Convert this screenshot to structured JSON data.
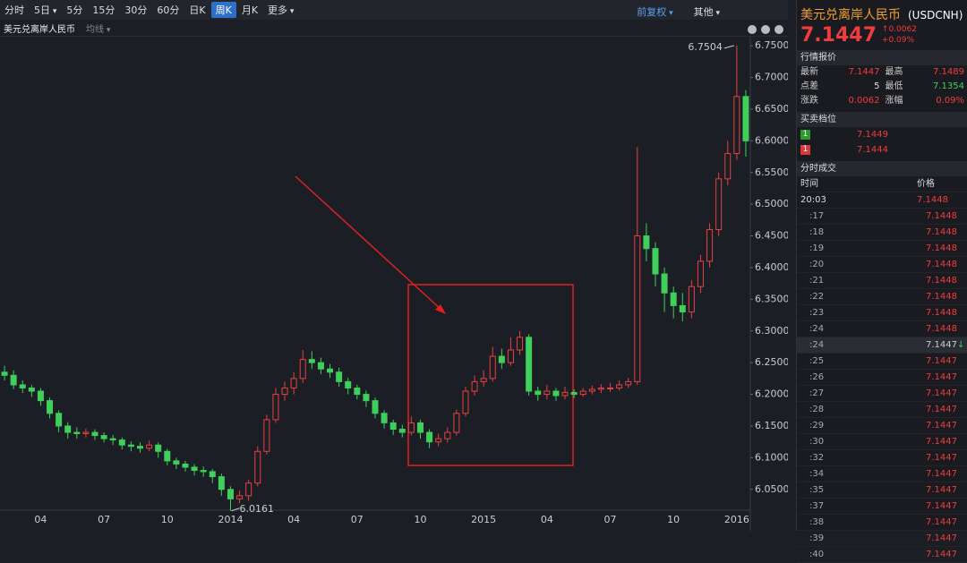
{
  "toolbar": {
    "periods": [
      "分时",
      "5日",
      "5分",
      "15分",
      "30分",
      "60分",
      "日K",
      "周K",
      "月K",
      "更多"
    ],
    "right": [
      "前复权",
      "其他"
    ]
  },
  "chart_header": {
    "name": "美元兑离岸人民币",
    "indicator": "均线"
  },
  "chart_data": {
    "type": "candlestick",
    "up_color": "#e8403f",
    "down_color": "#3fcf5b",
    "categories": [
      null,
      null,
      null,
      null,
      "04",
      null,
      null,
      null,
      null,
      null,
      null,
      "07",
      null,
      null,
      null,
      null,
      null,
      null,
      "10",
      null,
      null,
      null,
      null,
      null,
      null,
      "2014",
      null,
      null,
      null,
      null,
      null,
      null,
      "04",
      null,
      null,
      null,
      null,
      null,
      null,
      "07",
      null,
      null,
      null,
      null,
      null,
      null,
      "10",
      null,
      null,
      null,
      null,
      null,
      null,
      "2015",
      null,
      null,
      null,
      null,
      null,
      null,
      "04",
      null,
      null,
      null,
      null,
      null,
      null,
      "07",
      null,
      null,
      null,
      null,
      null,
      null,
      "10",
      null,
      null,
      null,
      null,
      null,
      null,
      "2016",
      null
    ],
    "open": [
      6.235,
      6.23,
      6.215,
      6.21,
      6.205,
      6.19,
      6.17,
      6.15,
      6.14,
      6.138,
      6.14,
      6.135,
      6.13,
      6.128,
      6.12,
      6.118,
      6.115,
      6.12,
      6.11,
      6.095,
      6.09,
      6.085,
      6.08,
      6.078,
      6.07,
      6.05,
      6.035,
      6.04,
      6.06,
      6.11,
      6.16,
      6.2,
      6.21,
      6.225,
      6.255,
      6.25,
      6.24,
      6.235,
      6.22,
      6.21,
      6.2,
      6.19,
      6.17,
      6.155,
      6.145,
      6.14,
      6.155,
      6.14,
      6.125,
      6.13,
      6.14,
      6.17,
      6.205,
      6.22,
      6.225,
      6.26,
      6.25,
      6.27,
      6.29,
      6.205,
      6.2,
      6.205,
      6.198,
      6.203,
      6.2,
      6.205,
      6.208,
      6.21,
      6.21,
      6.215,
      6.22,
      6.45,
      6.43,
      6.39,
      6.36,
      6.34,
      6.33,
      6.37,
      6.41,
      6.46,
      6.54,
      6.58,
      6.67
    ],
    "high": [
      6.245,
      6.238,
      6.222,
      6.215,
      6.21,
      6.195,
      6.175,
      6.156,
      6.148,
      6.146,
      6.145,
      6.14,
      6.136,
      6.132,
      6.126,
      6.124,
      6.127,
      6.124,
      6.114,
      6.1,
      6.095,
      6.09,
      6.086,
      6.082,
      6.075,
      6.055,
      6.048,
      6.065,
      6.118,
      6.168,
      6.21,
      6.22,
      6.235,
      6.27,
      6.268,
      6.258,
      6.248,
      6.242,
      6.226,
      6.215,
      6.206,
      6.195,
      6.175,
      6.16,
      6.152,
      6.165,
      6.16,
      6.145,
      6.138,
      6.148,
      6.176,
      6.212,
      6.23,
      6.238,
      6.275,
      6.272,
      6.29,
      6.3,
      6.295,
      6.212,
      6.215,
      6.21,
      6.212,
      6.208,
      6.21,
      6.214,
      6.216,
      6.218,
      6.222,
      6.226,
      6.59,
      6.47,
      6.44,
      6.4,
      6.37,
      6.36,
      6.38,
      6.42,
      6.47,
      6.55,
      6.6,
      6.7504,
      6.68
    ],
    "low": [
      6.222,
      6.208,
      6.202,
      6.196,
      6.182,
      6.162,
      6.14,
      6.13,
      6.13,
      6.132,
      6.128,
      6.124,
      6.12,
      6.113,
      6.11,
      6.108,
      6.11,
      6.1,
      6.088,
      6.082,
      6.078,
      6.072,
      6.07,
      6.06,
      6.04,
      6.0161,
      6.028,
      6.032,
      6.055,
      6.105,
      6.155,
      6.19,
      6.2,
      6.218,
      6.24,
      6.232,
      6.226,
      6.212,
      6.2,
      6.192,
      6.18,
      6.162,
      6.146,
      6.136,
      6.132,
      6.135,
      6.13,
      6.115,
      6.118,
      6.124,
      6.135,
      6.165,
      6.198,
      6.212,
      6.22,
      6.24,
      6.245,
      6.262,
      6.198,
      6.19,
      6.192,
      6.19,
      6.192,
      6.194,
      6.196,
      6.2,
      6.202,
      6.204,
      6.206,
      6.21,
      6.215,
      6.41,
      6.37,
      6.33,
      6.32,
      6.315,
      6.32,
      6.36,
      6.4,
      6.45,
      6.53,
      6.57,
      6.575
    ],
    "close": [
      6.23,
      6.215,
      6.21,
      6.205,
      6.19,
      6.17,
      6.15,
      6.14,
      6.138,
      6.14,
      6.135,
      6.13,
      6.128,
      6.12,
      6.118,
      6.115,
      6.12,
      6.11,
      6.095,
      6.09,
      6.085,
      6.08,
      6.078,
      6.07,
      6.05,
      6.035,
      6.04,
      6.06,
      6.11,
      6.16,
      6.2,
      6.21,
      6.225,
      6.255,
      6.25,
      6.24,
      6.235,
      6.22,
      6.21,
      6.2,
      6.19,
      6.17,
      6.155,
      6.145,
      6.14,
      6.155,
      6.14,
      6.125,
      6.13,
      6.14,
      6.17,
      6.205,
      6.22,
      6.225,
      6.26,
      6.25,
      6.27,
      6.29,
      6.205,
      6.2,
      6.205,
      6.198,
      6.203,
      6.2,
      6.205,
      6.208,
      6.21,
      6.21,
      6.215,
      6.22,
      6.45,
      6.43,
      6.39,
      6.36,
      6.34,
      6.33,
      6.37,
      6.41,
      6.46,
      6.54,
      6.58,
      6.67,
      6.6
    ],
    "ylim": [
      6.02,
      6.77
    ],
    "yticks": [
      {
        "value": 6.05,
        "label": "6.0500"
      },
      {
        "value": 6.1,
        "label": "6.1000"
      },
      {
        "value": 6.15,
        "label": "6.1500"
      },
      {
        "value": 6.2,
        "label": "6.2000"
      },
      {
        "value": 6.25,
        "label": "6.2500"
      },
      {
        "value": 6.3,
        "label": "6.3000"
      },
      {
        "value": 6.35,
        "label": "6.3500"
      },
      {
        "value": 6.4,
        "label": "6.4000"
      },
      {
        "value": 6.45,
        "label": "6.4500"
      },
      {
        "value": 6.5,
        "label": "6.5000"
      },
      {
        "value": 6.55,
        "label": "6.5500"
      },
      {
        "value": 6.6,
        "label": "6.6000"
      },
      {
        "value": 6.65,
        "label": "6.6500"
      },
      {
        "value": 6.7,
        "label": "6.7000"
      },
      {
        "value": 6.75,
        "label": "6.7500"
      }
    ]
  },
  "panel": {
    "title": "美元兑离岸人民币",
    "code": "(USDCNH)",
    "price": "7.1447",
    "change": "0.0062",
    "change_pct": "+0.09%",
    "quote_title": "行情报价",
    "quote": [
      [
        "最新",
        "7.1447",
        "最高",
        "7.1489"
      ],
      [
        "点差",
        "5",
        "最低",
        "7.1354"
      ],
      [
        "涨跌",
        "0.0062",
        "涨幅",
        "0.09%"
      ]
    ],
    "depth_title": "买卖档位",
    "depth": [
      [
        "1",
        "7.1449"
      ],
      [
        "1",
        "7.1444"
      ]
    ],
    "trades_title": "分时成交",
    "trades_header": [
      "时间",
      "价格"
    ],
    "trades": [
      [
        "20:03",
        "7.1448"
      ],
      [
        ":17",
        "7.1448"
      ],
      [
        ":18",
        "7.1448"
      ],
      [
        ":19",
        "7.1448"
      ],
      [
        ":20",
        "7.1448"
      ],
      [
        ":21",
        "7.1448"
      ],
      [
        ":22",
        "7.1448"
      ],
      [
        ":23",
        "7.1448"
      ],
      [
        ":24",
        "7.1448"
      ],
      [
        ":24",
        "7.1447"
      ],
      [
        ":25",
        "7.1447"
      ],
      [
        ":26",
        "7.1447"
      ],
      [
        ":27",
        "7.1447"
      ],
      [
        ":28",
        "7.1447"
      ],
      [
        ":29",
        "7.1447"
      ],
      [
        ":30",
        "7.1447"
      ],
      [
        ":32",
        "7.1447"
      ],
      [
        ":34",
        "7.1447"
      ],
      [
        ":35",
        "7.1447"
      ],
      [
        ":37",
        "7.1447"
      ],
      [
        ":38",
        "7.1447"
      ],
      [
        ":39",
        "7.1447"
      ],
      [
        ":40",
        "7.1447"
      ]
    ]
  }
}
